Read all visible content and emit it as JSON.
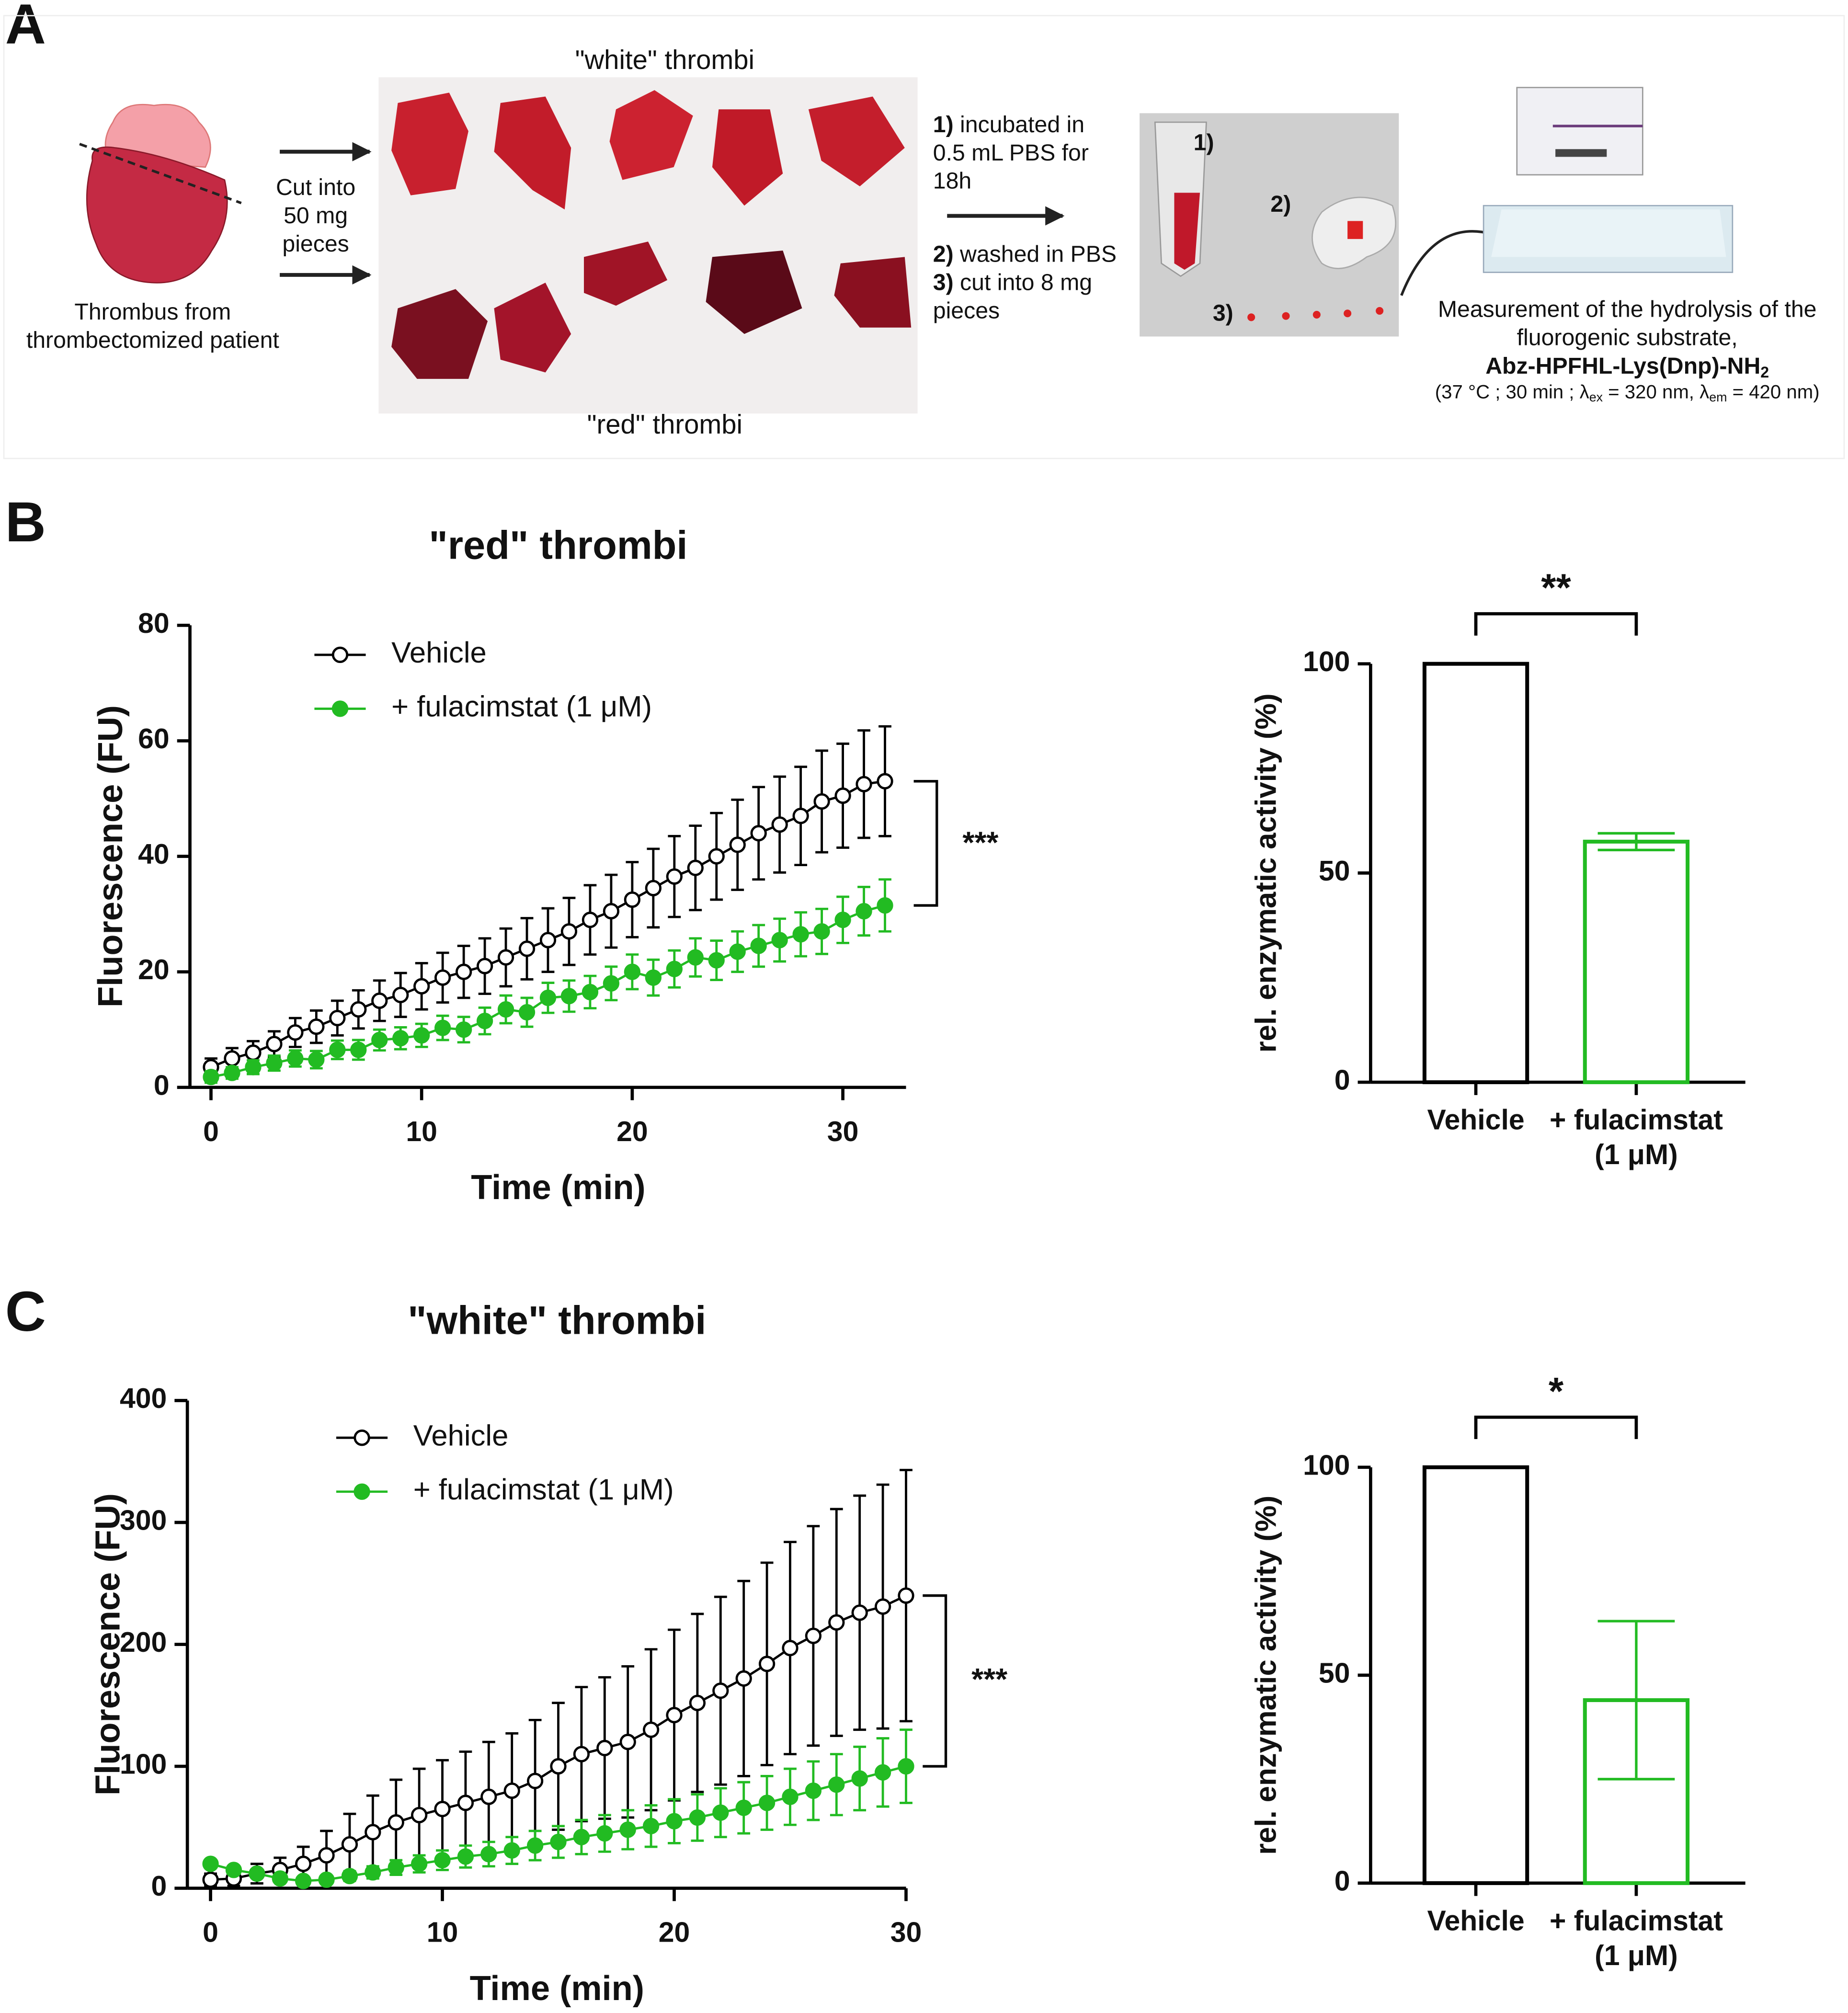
{
  "panel_labels": [
    "A",
    "B",
    "C"
  ],
  "panel_a": {
    "thrombus_label": [
      "Thrombus from",
      "thrombectomized patient"
    ],
    "cut_label": [
      "Cut into",
      "50 mg",
      "pieces"
    ],
    "white_label": "\"white\" thrombi",
    "red_label": "\"red\" thrombi",
    "steps": [
      {
        "num": "1)",
        "lines": [
          "incubated in",
          "0.5 mL PBS for",
          "18h"
        ]
      },
      {
        "num": "2)",
        "lines": [
          "washed in PBS"
        ]
      },
      {
        "num": "3)",
        "lines": [
          "cut into 8 mg",
          "pieces"
        ]
      }
    ],
    "photo_labels": [
      "1)",
      "2)",
      "3)"
    ],
    "measurement": [
      "Measurement of the hydrolysis of the",
      "fluorogenic substrate,"
    ],
    "substrate": [
      "Abz-HPFHL-Lys(Dnp)-NH",
      "2"
    ],
    "conditions": [
      "(37 °C ; 30 min ; λ",
      "ex",
      " = 320 nm,  λ",
      "em",
      " = 420 nm)"
    ]
  },
  "chart_data": [
    {
      "type": "line",
      "title": "\"red\" thrombi",
      "x_label": "Time (min)",
      "y_label": "Fluorescence (FU)",
      "x": [
        0,
        1,
        2,
        3,
        4,
        5,
        6,
        7,
        8,
        9,
        10,
        11,
        12,
        13,
        14,
        15,
        16,
        17,
        18,
        19,
        20,
        21,
        22,
        23,
        24,
        25,
        26,
        27,
        28,
        29,
        30,
        31,
        32
      ],
      "series": [
        {
          "name": "Vehicle",
          "color": "#000000",
          "marker_fill": "#ffffff",
          "values": [
            3.5,
            5,
            6,
            7.5,
            9.5,
            10.5,
            12,
            13.5,
            15,
            16,
            17.5,
            19,
            20,
            21,
            22.5,
            24,
            25.5,
            27,
            29,
            30.5,
            32.5,
            34.5,
            36.5,
            38,
            40,
            42,
            44,
            45.5,
            47,
            49.5,
            50.5,
            52.5,
            53
          ],
          "errors": [
            1.5,
            1.8,
            2,
            2.2,
            2.5,
            2.8,
            3,
            3.3,
            3.5,
            3.8,
            4,
            4.3,
            4.5,
            4.8,
            5,
            5.3,
            5.5,
            5.8,
            6,
            6.3,
            6.5,
            6.8,
            7,
            7.3,
            7.5,
            7.8,
            8,
            8.3,
            8.5,
            8.8,
            9,
            9.3,
            9.5
          ]
        },
        {
          "name": "+ fulacimstat (1 μM)",
          "color": "#22bb22",
          "marker_fill": "#22bb22",
          "values": [
            1.8,
            2.5,
            3.5,
            4.2,
            5,
            4.8,
            6.5,
            6.5,
            8.2,
            8.5,
            9,
            10.3,
            10,
            11.5,
            13.5,
            13,
            15.5,
            15.8,
            16.5,
            18,
            20,
            19,
            20.5,
            22.5,
            22,
            23.5,
            24.5,
            25.5,
            26.5,
            27,
            29,
            30.5,
            31.5
          ],
          "errors": [
            1,
            1,
            1.2,
            1.3,
            1.4,
            1.5,
            1.6,
            1.7,
            1.8,
            1.9,
            2,
            2.1,
            2.2,
            2.3,
            2.4,
            2.5,
            2.6,
            2.7,
            2.8,
            2.9,
            3,
            3.1,
            3.2,
            3.3,
            3.4,
            3.5,
            3.6,
            3.7,
            3.8,
            3.9,
            4,
            4.2,
            4.5
          ]
        }
      ],
      "xlim": [
        -1,
        33
      ],
      "ylim": [
        0,
        80
      ],
      "xticks": [
        0,
        10,
        20,
        30
      ],
      "yticks": [
        0,
        20,
        40,
        60,
        80
      ],
      "annotations": [
        "***"
      ]
    },
    {
      "type": "bar",
      "y_label": "rel. enzymatic activity (%)",
      "categories": [
        [
          "Vehicle"
        ],
        [
          "+ fulacimstat",
          "(1 μM)"
        ]
      ],
      "values": [
        100,
        57.5
      ],
      "errors": [
        null,
        2
      ],
      "colors": [
        "#000000",
        "#22bb22"
      ],
      "ylim": [
        0,
        100
      ],
      "yticks": [
        0,
        50,
        100
      ],
      "annotations": [
        "**"
      ]
    },
    {
      "type": "line",
      "title": "\"white\" thrombi",
      "x_label": "Time (min)",
      "y_label": "Fluorescence (FU)",
      "x": [
        0,
        1,
        2,
        3,
        4,
        5,
        6,
        7,
        8,
        9,
        10,
        11,
        12,
        13,
        14,
        15,
        16,
        17,
        18,
        19,
        20,
        21,
        22,
        23,
        24,
        25,
        26,
        27,
        28,
        29,
        30
      ],
      "series": [
        {
          "name": "Vehicle",
          "color": "#000000",
          "marker_fill": "#ffffff",
          "values": [
            7,
            8,
            12,
            15,
            20,
            27,
            36,
            46,
            54,
            60,
            65,
            70,
            75,
            80,
            88,
            100,
            110,
            115,
            120,
            130,
            142,
            152,
            162,
            172,
            184,
            197,
            207,
            218,
            226,
            231,
            240
          ],
          "errors": [
            5,
            6,
            8,
            10,
            14,
            20,
            25,
            30,
            35,
            38,
            40,
            42,
            45,
            47,
            50,
            52,
            55,
            58,
            62,
            66,
            70,
            73,
            77,
            80,
            83,
            87,
            90,
            93,
            96,
            100,
            103
          ]
        },
        {
          "name": "+ fulacimstat (1 μM)",
          "color": "#22bb22",
          "marker_fill": "#22bb22",
          "values": [
            20,
            15,
            12,
            8,
            6,
            7,
            10,
            13,
            17,
            20,
            23,
            26,
            28,
            31,
            35,
            38,
            42,
            45,
            48,
            51,
            55,
            58,
            62,
            66,
            70,
            75,
            80,
            85,
            90,
            95,
            100
          ],
          "errors": [
            3,
            3,
            3,
            3,
            3,
            3,
            4,
            5,
            6,
            7,
            8,
            9,
            10,
            11,
            12,
            13,
            14,
            15,
            16,
            17,
            18,
            19,
            20,
            21,
            22,
            23,
            24,
            25,
            26,
            28,
            30
          ]
        }
      ],
      "xlim": [
        -1,
        30
      ],
      "ylim": [
        0,
        400
      ],
      "xticks": [
        0,
        10,
        20,
        30
      ],
      "yticks": [
        0,
        100,
        200,
        300,
        400
      ],
      "annotations": [
        "***"
      ]
    },
    {
      "type": "bar",
      "y_label": "rel. enzymatic activity (%)",
      "categories": [
        [
          "Vehicle"
        ],
        [
          "+ fulacimstat",
          "(1 μM)"
        ]
      ],
      "values": [
        100,
        44
      ],
      "errors": [
        null,
        19
      ],
      "colors": [
        "#000000",
        "#22bb22"
      ],
      "ylim": [
        0,
        100
      ],
      "yticks": [
        0,
        50,
        100
      ],
      "annotations": [
        "*"
      ]
    }
  ]
}
